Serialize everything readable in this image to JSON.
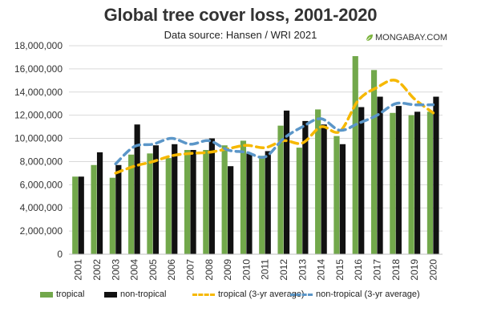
{
  "chart_data": {
    "type": "bar",
    "title": "Global tree cover loss, 2001-2020",
    "subtitle": "Data source: Hansen / WRI 2021",
    "brand": "MONGABAY.COM",
    "xlabel": "",
    "ylabel": "",
    "ylim": [
      0,
      18000000
    ],
    "ytick_labels": [
      "0",
      "2,000,000",
      "4,000,000",
      "6,000,000",
      "8,000,000",
      "10,000,000",
      "12,000,000",
      "14,000,000",
      "16,000,000",
      "18,000,000"
    ],
    "grid": true,
    "legend_position": "bottom",
    "categories": [
      "2001",
      "2002",
      "2003",
      "2004",
      "2005",
      "2006",
      "2007",
      "2008",
      "2009",
      "2010",
      "2011",
      "2012",
      "2013",
      "2014",
      "2015",
      "2016",
      "2017",
      "2018",
      "2019",
      "2020"
    ],
    "series": [
      {
        "name": "tropical",
        "kind": "bar",
        "color": "#72a84b",
        "values": [
          6700000,
          7700000,
          6600000,
          8600000,
          8700000,
          8300000,
          9000000,
          9000000,
          9400000,
          9800000,
          8500000,
          11100000,
          9200000,
          12500000,
          10200000,
          17100000,
          15900000,
          12200000,
          12000000,
          12300000
        ]
      },
      {
        "name": "non-tropical",
        "kind": "bar",
        "color": "#111111",
        "values": [
          6700000,
          8800000,
          7700000,
          11200000,
          9400000,
          9500000,
          9000000,
          10000000,
          7600000,
          8700000,
          8900000,
          12400000,
          11500000,
          11200000,
          9500000,
          12700000,
          13600000,
          12800000,
          12300000,
          13600000
        ]
      },
      {
        "name": "tropical (3-yr average)",
        "kind": "line",
        "color": "#f6b800",
        "values": [
          null,
          null,
          7000000,
          7600000,
          8000000,
          8500000,
          8700000,
          8800000,
          9100000,
          9400000,
          9200000,
          9800000,
          9600000,
          11000000,
          10600000,
          13300000,
          14400000,
          15000000,
          13400000,
          12200000
        ]
      },
      {
        "name": "non-tropical (3-yr average)",
        "kind": "line",
        "color": "#5b96c8",
        "values": [
          null,
          null,
          7800000,
          9300000,
          9500000,
          10000000,
          9500000,
          9800000,
          9000000,
          8800000,
          8400000,
          10000000,
          11000000,
          11700000,
          10700000,
          11300000,
          12000000,
          13000000,
          12900000,
          12900000
        ]
      }
    ]
  }
}
